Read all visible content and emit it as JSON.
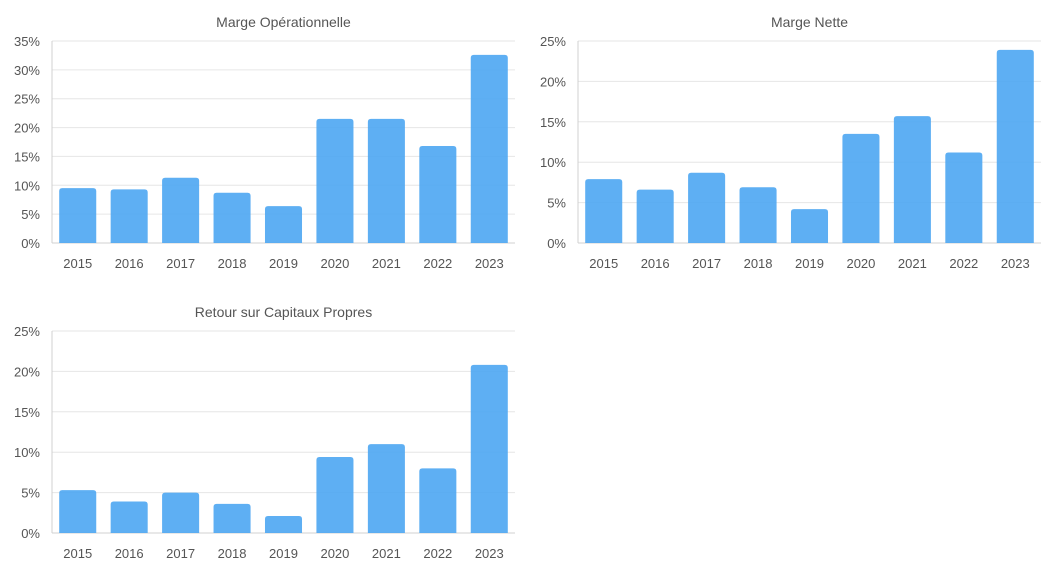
{
  "colors": {
    "bar": "#4da6f2",
    "grid": "#e6e6e6",
    "text": "#555555"
  },
  "chart_data": [
    {
      "type": "bar",
      "title": "Marge Opérationnelle",
      "categories": [
        "2015",
        "2016",
        "2017",
        "2018",
        "2019",
        "2020",
        "2021",
        "2022",
        "2023"
      ],
      "values": [
        9.5,
        9.3,
        11.3,
        8.7,
        6.4,
        21.5,
        21.5,
        16.8,
        32.6
      ],
      "ylim": [
        0,
        35
      ],
      "yticks": [
        "0%",
        "5%",
        "10%",
        "15%",
        "20%",
        "25%",
        "30%",
        "35%"
      ],
      "xlabel": "",
      "ylabel": "",
      "grid": true
    },
    {
      "type": "bar",
      "title": "Marge Nette",
      "categories": [
        "2015",
        "2016",
        "2017",
        "2018",
        "2019",
        "2020",
        "2021",
        "2022",
        "2023"
      ],
      "values": [
        7.9,
        6.6,
        8.7,
        6.9,
        4.2,
        13.5,
        15.7,
        11.2,
        23.9
      ],
      "ylim": [
        0,
        25
      ],
      "yticks": [
        "0%",
        "5%",
        "10%",
        "15%",
        "20%",
        "25%"
      ],
      "xlabel": "",
      "ylabel": "",
      "grid": true
    },
    {
      "type": "bar",
      "title": "Retour sur Capitaux Propres",
      "categories": [
        "2015",
        "2016",
        "2017",
        "2018",
        "2019",
        "2020",
        "2021",
        "2022",
        "2023"
      ],
      "values": [
        5.3,
        3.9,
        5.0,
        3.6,
        2.1,
        9.4,
        11.0,
        8.0,
        20.8
      ],
      "ylim": [
        0,
        25
      ],
      "yticks": [
        "0%",
        "5%",
        "10%",
        "15%",
        "20%",
        "25%"
      ],
      "xlabel": "",
      "ylabel": "",
      "grid": true
    }
  ]
}
